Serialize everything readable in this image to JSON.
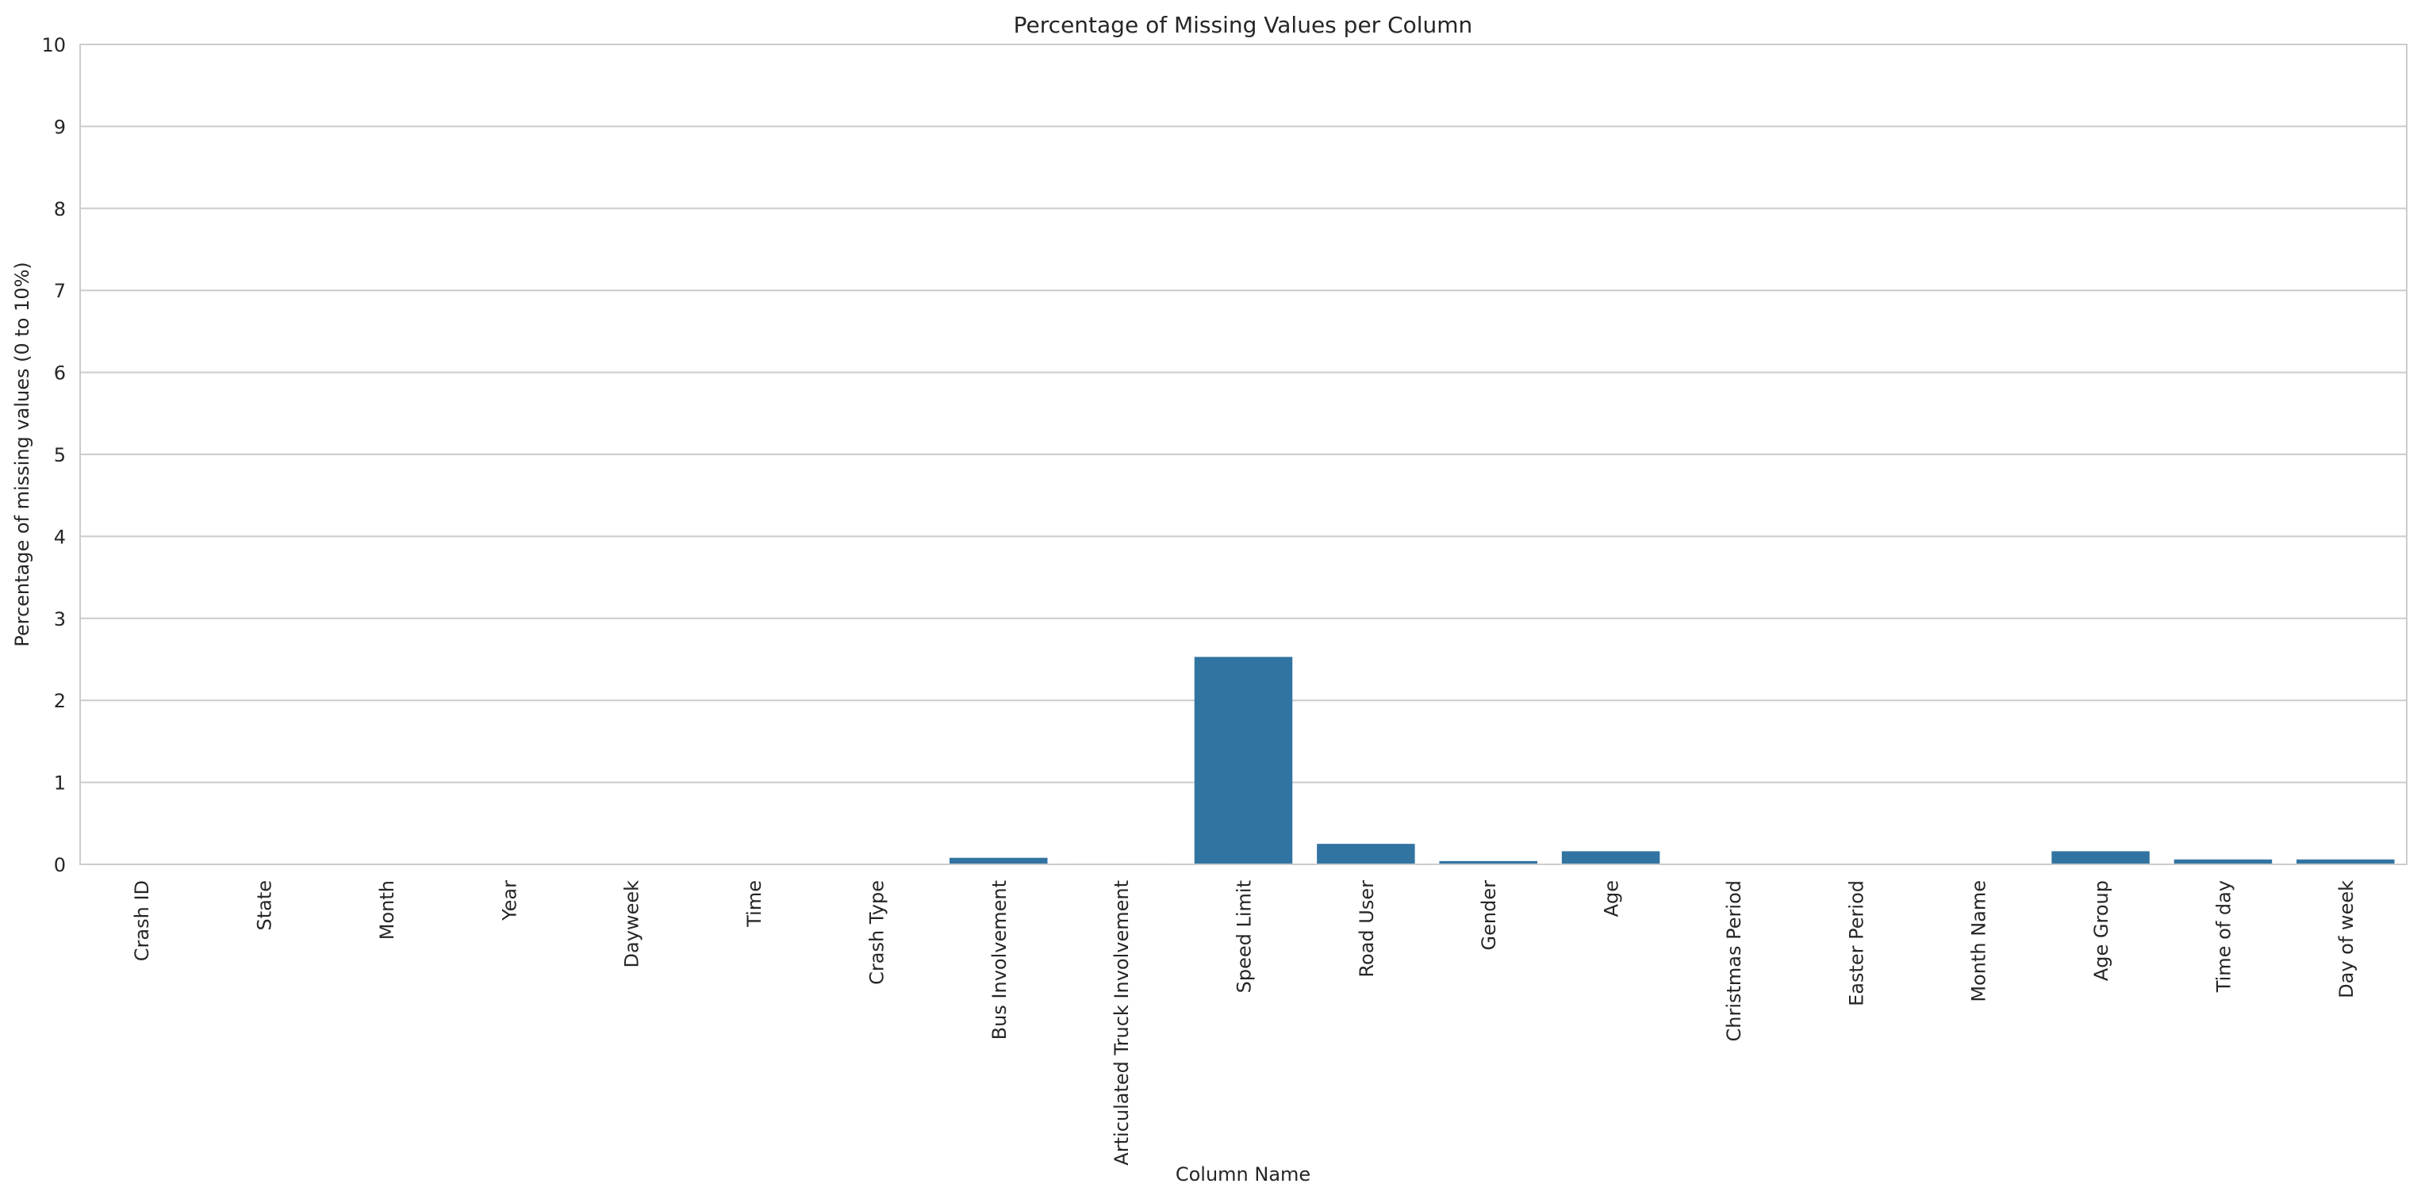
{
  "chart_data": {
    "type": "bar",
    "title": "Percentage of Missing Values per Column",
    "xlabel": "Column Name",
    "ylabel": "Percentage of missing values (0 to 10%)",
    "ylim": [
      0,
      10
    ],
    "yticks": [
      "0",
      "1",
      "2",
      "3",
      "4",
      "5",
      "6",
      "7",
      "8",
      "9",
      "10"
    ],
    "grid": "horizontal",
    "bar_color": "#3274a1",
    "categories": [
      "Crash ID",
      "State",
      "Month",
      "Year",
      "Dayweek",
      "Time",
      "Crash Type",
      "Bus Involvement",
      "Articulated Truck Involvement",
      "Speed Limit",
      "Road User",
      "Gender",
      "Age",
      "Christmas Period",
      "Easter Period",
      "Month Name",
      "Age Group",
      "Time of day",
      "Day of week"
    ],
    "values": [
      0,
      0,
      0,
      0,
      0,
      0,
      0,
      0.08,
      0.01,
      2.53,
      0.25,
      0.04,
      0.16,
      0,
      0,
      0,
      0.16,
      0.06,
      0.06
    ]
  }
}
